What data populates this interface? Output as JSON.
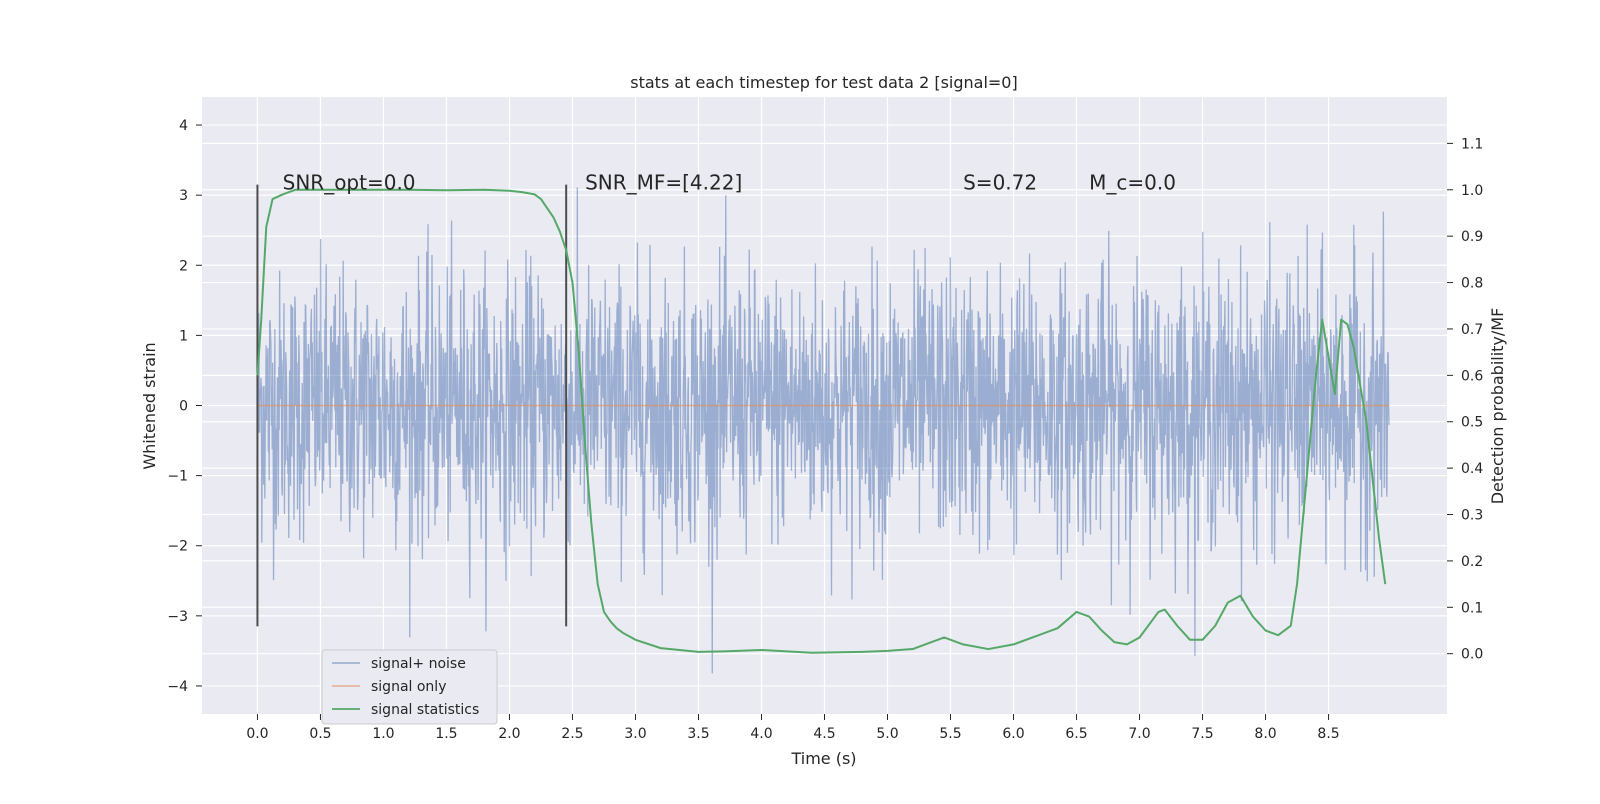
{
  "chart_data": {
    "type": "line",
    "title": "stats at each timestep for test data 2 [signal=0]",
    "xlabel": "Time (s)",
    "ylabel_left": "Whitened strain",
    "ylabel_right": "Detection probability/MF",
    "xlim": [
      -0.44,
      9.44
    ],
    "ylim_left": [
      -4.4,
      4.4
    ],
    "ylim_right": [
      -0.13,
      1.2
    ],
    "x_ticks": [
      "0.0",
      "0.5",
      "1.0",
      "1.5",
      "2.0",
      "2.5",
      "3.0",
      "3.5",
      "4.0",
      "4.5",
      "5.0",
      "5.5",
      "6.0",
      "6.5",
      "7.0",
      "7.5",
      "8.0",
      "8.5"
    ],
    "x_tick_values": [
      0,
      0.5,
      1,
      1.5,
      2,
      2.5,
      3,
      3.5,
      4,
      4.5,
      5,
      5.5,
      6,
      6.5,
      7,
      7.5,
      8,
      8.5
    ],
    "left_ticks": [
      "−4",
      "−3",
      "−2",
      "−1",
      "0",
      "1",
      "2",
      "3",
      "4"
    ],
    "left_tick_values": [
      -4,
      -3,
      -2,
      -1,
      0,
      1,
      2,
      3,
      4
    ],
    "right_ticks": [
      "0.0",
      "0.1",
      "0.2",
      "0.3",
      "0.4",
      "0.5",
      "0.6",
      "0.7",
      "0.8",
      "0.9",
      "1.0",
      "1.1"
    ],
    "right_tick_values": [
      0,
      0.1,
      0.2,
      0.3,
      0.4,
      0.5,
      0.6,
      0.7,
      0.8,
      0.9,
      1.0,
      1.1
    ],
    "grid": true,
    "legend_position": "lower-left",
    "series": [
      {
        "name": "signal+ noise",
        "axis": "left",
        "style": "noise",
        "color": "#4c72b0",
        "x_range": [
          0,
          8.98
        ],
        "envelope_typical": 1.3,
        "peak_max": 4.0,
        "peak_min": -4.0
      },
      {
        "name": "signal only",
        "axis": "left",
        "color": "#dd8452",
        "x": [
          0,
          8.98
        ],
        "y": [
          0,
          0
        ]
      },
      {
        "name": "signal statistics",
        "axis": "right",
        "color": "#55a868",
        "x": [
          0,
          0.03,
          0.07,
          0.12,
          0.2,
          0.3,
          0.5,
          0.8,
          1.0,
          1.2,
          1.5,
          1.8,
          2.0,
          2.1,
          2.2,
          2.25,
          2.3,
          2.35,
          2.4,
          2.45,
          2.5,
          2.55,
          2.6,
          2.65,
          2.7,
          2.75,
          2.8,
          2.85,
          2.9,
          3.0,
          3.2,
          3.5,
          3.7,
          4.0,
          4.4,
          4.8,
          5.0,
          5.2,
          5.35,
          5.45,
          5.6,
          5.8,
          6.0,
          6.2,
          6.35,
          6.5,
          6.6,
          6.7,
          6.8,
          6.9,
          7.0,
          7.15,
          7.2,
          7.3,
          7.4,
          7.5,
          7.6,
          7.7,
          7.8,
          7.9,
          8.0,
          8.1,
          8.2,
          8.25,
          8.3,
          8.35,
          8.4,
          8.45,
          8.5,
          8.55,
          8.6,
          8.65,
          8.7,
          8.8,
          8.9,
          8.95
        ],
        "y": [
          0.6,
          0.72,
          0.92,
          0.98,
          0.99,
          1.0,
          1.0,
          1.0,
          1.0,
          1.0,
          0.999,
          1.0,
          0.998,
          0.995,
          0.99,
          0.98,
          0.96,
          0.94,
          0.91,
          0.87,
          0.8,
          0.65,
          0.45,
          0.28,
          0.15,
          0.09,
          0.07,
          0.055,
          0.045,
          0.03,
          0.012,
          0.004,
          0.005,
          0.008,
          0.002,
          0.004,
          0.006,
          0.01,
          0.025,
          0.035,
          0.02,
          0.01,
          0.02,
          0.04,
          0.055,
          0.09,
          0.08,
          0.05,
          0.025,
          0.02,
          0.035,
          0.09,
          0.095,
          0.06,
          0.03,
          0.03,
          0.06,
          0.11,
          0.125,
          0.08,
          0.05,
          0.04,
          0.06,
          0.15,
          0.3,
          0.45,
          0.6,
          0.72,
          0.64,
          0.56,
          0.72,
          0.71,
          0.66,
          0.5,
          0.25,
          0.15
        ]
      }
    ],
    "vlines": [
      {
        "x": 0.0,
        "y0": -3.15,
        "y1": 3.15,
        "color": "#4d4d4d"
      },
      {
        "x": 2.45,
        "y0": -3.15,
        "y1": 3.15,
        "color": "#4d4d4d"
      }
    ],
    "annotations": [
      {
        "id": "snr-opt",
        "text": "SNR_opt=0.0",
        "x": 0.2,
        "y": 3.15
      },
      {
        "id": "snr-mf",
        "text": "SNR_MF=[4.22]",
        "x": 2.6,
        "y": 3.15
      },
      {
        "id": "s",
        "text": "S=0.72",
        "x": 5.6,
        "y": 3.15
      },
      {
        "id": "mc",
        "text": "M_c=0.0",
        "x": 6.6,
        "y": 3.15
      }
    ],
    "colors": {
      "background": "#eaeaf2",
      "grid": "#ffffff",
      "noise": "#4c72b0",
      "signal": "#dd8452",
      "stats": "#55a868"
    }
  }
}
